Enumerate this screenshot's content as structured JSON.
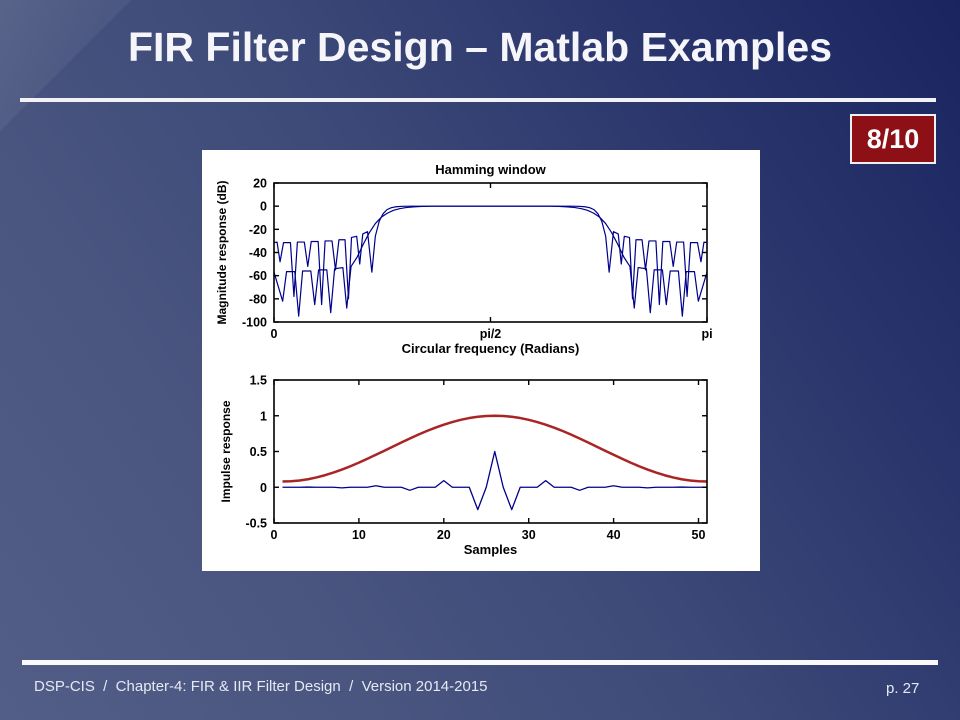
{
  "slide": {
    "title": "FIR Filter Design – Matlab Examples",
    "slide_counter": "8/10",
    "footer": "DSP-CIS  /  Chapter-4: FIR & IIR Filter Design  /  Version 2014-2015",
    "page_number": "p. 27"
  },
  "colors": {
    "background_top_right": "#1a2560",
    "background_bottom_left": "#525e88",
    "title_text": "#f6f6fa",
    "badge_background": "#8c1016",
    "badge_border": "#f0f0f0",
    "panel_background": "#ffffff",
    "axis": "#000000",
    "magnitude_curves": "#00008b",
    "window_curve": "#aa2424",
    "impulse_curve": "#00008b",
    "footer_text": "#e6e9f2"
  },
  "chart_data": [
    {
      "type": "line",
      "title": "Hamming window",
      "xlabel": "Circular frequency (Radians)",
      "ylabel": "Magnitude response (dB)",
      "x_units": "fraction_of_pi",
      "xlim": [
        0,
        1
      ],
      "ylim": [
        -100,
        20
      ],
      "xticks": [
        {
          "v": 0,
          "label": "0"
        },
        {
          "v": 0.5,
          "label": "pi/2"
        },
        {
          "v": 1,
          "label": "pi"
        }
      ],
      "yticks": [
        {
          "v": 20,
          "label": "20"
        },
        {
          "v": 0,
          "label": "0"
        },
        {
          "v": -20,
          "label": "-20"
        },
        {
          "v": -40,
          "label": "-40"
        },
        {
          "v": -60,
          "label": "-60"
        },
        {
          "v": -80,
          "label": "-80"
        },
        {
          "v": -100,
          "label": "-100"
        }
      ],
      "grid": false,
      "series": [
        {
          "name": "bandpass-magnitude-response-sidelobes-30dB",
          "color": "#00008b",
          "width": 1.2,
          "points": [
            [
              0.0,
              -31.5
            ],
            [
              0.007,
              -31
            ],
            [
              0.014,
              -48
            ],
            [
              0.022,
              -31.5
            ],
            [
              0.038,
              -31.5
            ],
            [
              0.046,
              -78
            ],
            [
              0.054,
              -31
            ],
            [
              0.07,
              -31
            ],
            [
              0.078,
              -52
            ],
            [
              0.086,
              -30.5
            ],
            [
              0.102,
              -30.5
            ],
            [
              0.11,
              -85
            ],
            [
              0.118,
              -30
            ],
            [
              0.134,
              -30
            ],
            [
              0.142,
              -55
            ],
            [
              0.15,
              -29
            ],
            [
              0.164,
              -29
            ],
            [
              0.172,
              -80
            ],
            [
              0.179,
              -27
            ],
            [
              0.191,
              -26
            ],
            [
              0.198,
              -50
            ],
            [
              0.205,
              -24
            ],
            [
              0.216,
              -22
            ],
            [
              0.226,
              -57
            ],
            [
              0.234,
              -26
            ],
            [
              0.243,
              -13
            ],
            [
              0.252,
              -6.5
            ],
            [
              0.261,
              -3
            ],
            [
              0.271,
              -1.3
            ],
            [
              0.282,
              -0.5
            ],
            [
              0.296,
              -0.12
            ],
            [
              0.312,
              0
            ],
            [
              0.688,
              0
            ],
            [
              0.704,
              -0.12
            ],
            [
              0.718,
              -0.5
            ],
            [
              0.729,
              -1.3
            ],
            [
              0.739,
              -3
            ],
            [
              0.748,
              -6.5
            ],
            [
              0.757,
              -13
            ],
            [
              0.766,
              -26
            ],
            [
              0.774,
              -57
            ],
            [
              0.784,
              -22
            ],
            [
              0.795,
              -24
            ],
            [
              0.802,
              -50
            ],
            [
              0.809,
              -26
            ],
            [
              0.821,
              -27
            ],
            [
              0.828,
              -80
            ],
            [
              0.836,
              -29
            ],
            [
              0.85,
              -29
            ],
            [
              0.858,
              -55
            ],
            [
              0.866,
              -30
            ],
            [
              0.882,
              -30
            ],
            [
              0.89,
              -85
            ],
            [
              0.898,
              -30.5
            ],
            [
              0.914,
              -30.5
            ],
            [
              0.922,
              -52
            ],
            [
              0.93,
              -31
            ],
            [
              0.946,
              -31
            ],
            [
              0.954,
              -78
            ],
            [
              0.962,
              -31.5
            ],
            [
              0.978,
              -31.5
            ],
            [
              0.986,
              -48
            ],
            [
              0.993,
              -31
            ],
            [
              1.0,
              -31.5
            ]
          ]
        },
        {
          "name": "bandpass-magnitude-response-hamming-sidelobes-55dB",
          "color": "#00008b",
          "width": 1.2,
          "points": [
            [
              0.0,
              -57
            ],
            [
              0.02,
              -82
            ],
            [
              0.029,
              -56.5
            ],
            [
              0.048,
              -56.5
            ],
            [
              0.057,
              -95
            ],
            [
              0.066,
              -56
            ],
            [
              0.085,
              -56
            ],
            [
              0.094,
              -85
            ],
            [
              0.103,
              -55
            ],
            [
              0.122,
              -55
            ],
            [
              0.131,
              -92
            ],
            [
              0.14,
              -54
            ],
            [
              0.159,
              -53
            ],
            [
              0.168,
              -88
            ],
            [
              0.178,
              -52
            ],
            [
              0.192,
              -44
            ],
            [
              0.206,
              -33
            ],
            [
              0.22,
              -23
            ],
            [
              0.234,
              -15
            ],
            [
              0.248,
              -9.5
            ],
            [
              0.262,
              -6
            ],
            [
              0.276,
              -3.6
            ],
            [
              0.29,
              -2.2
            ],
            [
              0.305,
              -1.2
            ],
            [
              0.322,
              -0.6
            ],
            [
              0.342,
              -0.25
            ],
            [
              0.365,
              0
            ],
            [
              0.635,
              0
            ],
            [
              0.658,
              -0.25
            ],
            [
              0.678,
              -0.6
            ],
            [
              0.695,
              -1.2
            ],
            [
              0.71,
              -2.2
            ],
            [
              0.724,
              -3.6
            ],
            [
              0.738,
              -6
            ],
            [
              0.752,
              -9.5
            ],
            [
              0.766,
              -15
            ],
            [
              0.78,
              -23
            ],
            [
              0.794,
              -33
            ],
            [
              0.808,
              -44
            ],
            [
              0.822,
              -52
            ],
            [
              0.832,
              -88
            ],
            [
              0.841,
              -53
            ],
            [
              0.86,
              -54
            ],
            [
              0.869,
              -92
            ],
            [
              0.878,
              -55
            ],
            [
              0.897,
              -55
            ],
            [
              0.906,
              -85
            ],
            [
              0.915,
              -56
            ],
            [
              0.934,
              -56
            ],
            [
              0.943,
              -95
            ],
            [
              0.952,
              -56.5
            ],
            [
              0.971,
              -56.5
            ],
            [
              0.98,
              -82
            ],
            [
              1.0,
              -57
            ]
          ]
        }
      ]
    },
    {
      "type": "line",
      "title": "",
      "xlabel": "Samples",
      "ylabel": "Impulse response",
      "xlim": [
        0,
        51
      ],
      "ylim": [
        -0.5,
        1.5
      ],
      "xticks": [
        {
          "v": 0,
          "label": "0"
        },
        {
          "v": 10,
          "label": "10"
        },
        {
          "v": 20,
          "label": "20"
        },
        {
          "v": 30,
          "label": "30"
        },
        {
          "v": 40,
          "label": "40"
        },
        {
          "v": 50,
          "label": "50"
        }
      ],
      "yticks": [
        {
          "v": 1.5,
          "label": "1.5"
        },
        {
          "v": 1,
          "label": "1"
        },
        {
          "v": 0.5,
          "label": "0.5"
        },
        {
          "v": 0,
          "label": "0"
        },
        {
          "v": -0.5,
          "label": "-0.5"
        }
      ],
      "grid": false,
      "series": [
        {
          "name": "hamming-window-function",
          "color": "#aa2424",
          "width": 2.5,
          "x": [
            1,
            2,
            3,
            4,
            5,
            6,
            7,
            8,
            9,
            10,
            11,
            12,
            13,
            14,
            15,
            16,
            17,
            18,
            19,
            20,
            21,
            22,
            23,
            24,
            25,
            26,
            27,
            28,
            29,
            30,
            31,
            32,
            33,
            34,
            35,
            36,
            37,
            38,
            39,
            40,
            41,
            42,
            43,
            44,
            45,
            46,
            47,
            48,
            49,
            50,
            51
          ],
          "y": [
            0.08,
            0.084,
            0.095,
            0.112,
            0.137,
            0.168,
            0.205,
            0.247,
            0.294,
            0.344,
            0.398,
            0.454,
            0.511,
            0.569,
            0.626,
            0.682,
            0.736,
            0.787,
            0.833,
            0.875,
            0.912,
            0.943,
            0.968,
            0.986,
            0.996,
            1.0,
            0.996,
            0.986,
            0.968,
            0.943,
            0.912,
            0.875,
            0.833,
            0.787,
            0.736,
            0.682,
            0.626,
            0.569,
            0.511,
            0.454,
            0.398,
            0.344,
            0.294,
            0.247,
            0.205,
            0.168,
            0.137,
            0.112,
            0.095,
            0.084,
            0.08
          ]
        },
        {
          "name": "bandpass-filter-impulse-response",
          "color": "#00008b",
          "width": 1.3,
          "x": [
            1,
            2,
            3,
            4,
            5,
            6,
            7,
            8,
            9,
            10,
            11,
            12,
            13,
            14,
            15,
            16,
            17,
            18,
            19,
            20,
            21,
            22,
            23,
            24,
            25,
            26,
            27,
            28,
            29,
            30,
            31,
            32,
            33,
            34,
            35,
            36,
            37,
            38,
            39,
            40,
            41,
            42,
            43,
            44,
            45,
            46,
            47,
            48,
            49,
            50,
            51
          ],
          "y": [
            0,
            0,
            0,
            0.003,
            0,
            0,
            0,
            -0.009,
            0,
            0,
            0,
            0.021,
            0,
            0,
            0,
            -0.043,
            0,
            0,
            0,
            0.093,
            0,
            0,
            0,
            -0.313,
            0,
            0.5,
            0,
            -0.313,
            0,
            0,
            0,
            0.093,
            0,
            0,
            0,
            -0.043,
            0,
            0,
            0,
            0.021,
            0,
            0,
            0,
            -0.009,
            0,
            0,
            0,
            0.003,
            0,
            0,
            0
          ]
        }
      ]
    }
  ]
}
